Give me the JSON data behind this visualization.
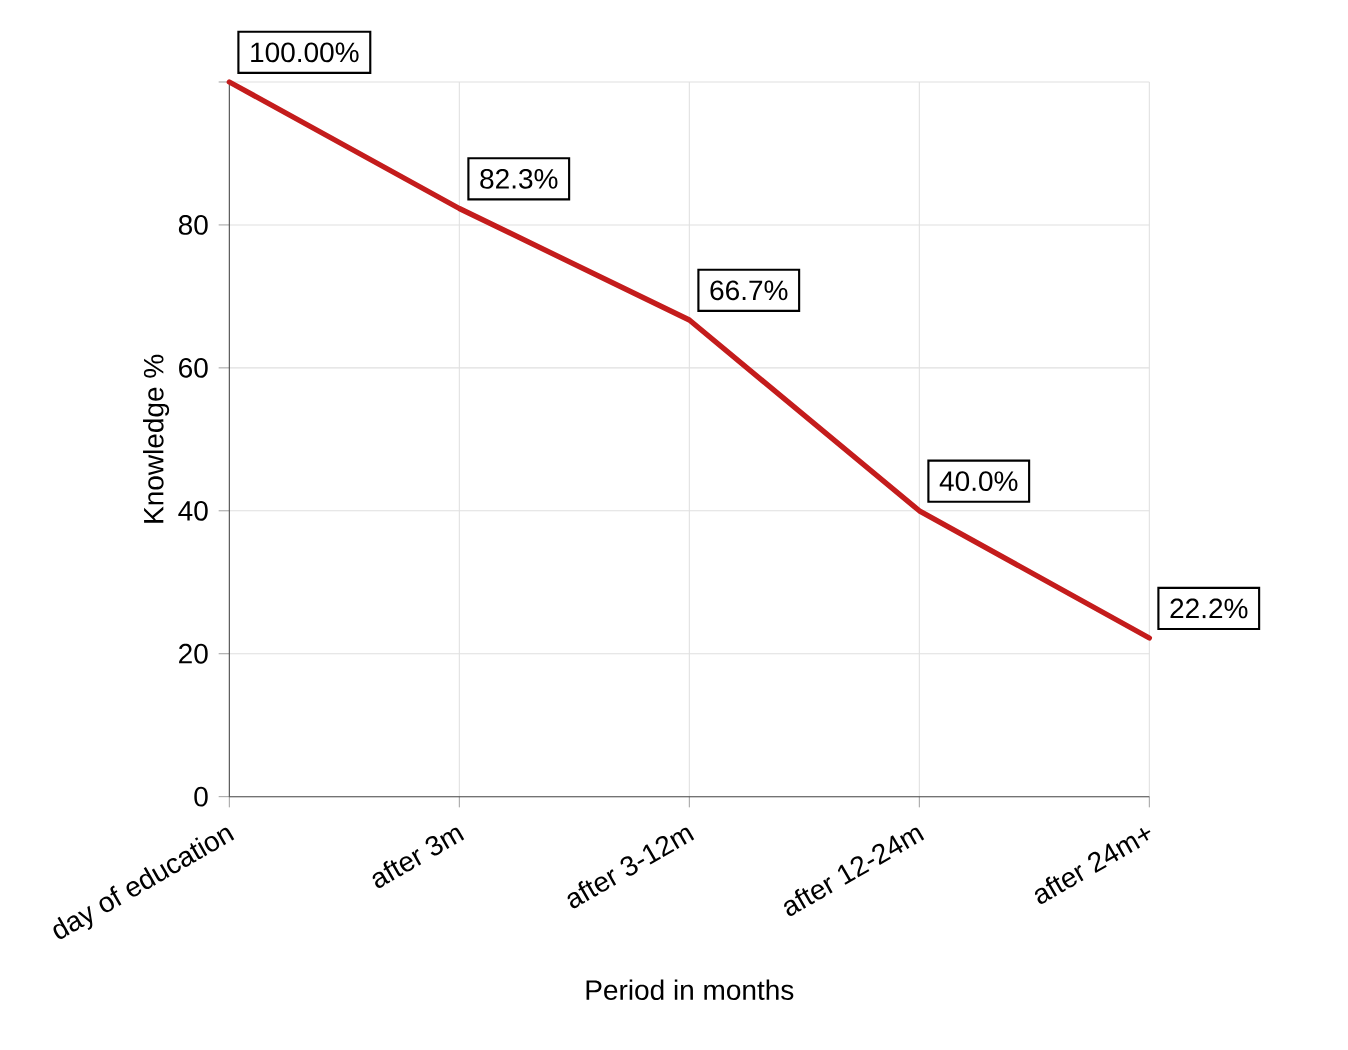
{
  "chart_data": {
    "type": "line",
    "xlabel": "Period in months",
    "ylabel": "Knowledge %",
    "categories": [
      "day of education",
      "after 3m",
      "after 3-12m",
      "after 12-24m",
      "after 24m+"
    ],
    "ylim": [
      0,
      100
    ],
    "yticks": [
      0,
      20,
      40,
      60,
      80,
      {
        "value": 100,
        "label": null
      }
    ],
    "series": [
      {
        "values": [
          100,
          82.3,
          66.7,
          40.0,
          22.2
        ],
        "color": "#c41c1c",
        "value_labels": [
          "100.00%",
          "82.3%",
          "66.7%",
          "40.0%",
          "22.2%"
        ]
      }
    ],
    "grid": true,
    "marker": "none",
    "line_style": "solid"
  }
}
